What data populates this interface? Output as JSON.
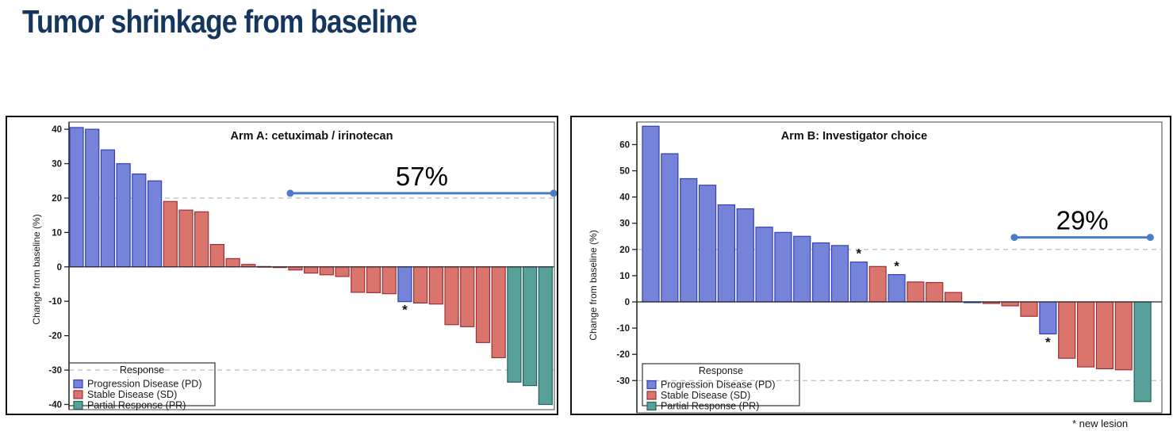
{
  "page": {
    "title": "Tumor shrinkage from baseline",
    "footnote": "* new lesion"
  },
  "legend": {
    "title": "Response",
    "items": [
      {
        "label": "Progression Disease (PD)",
        "response": "PD"
      },
      {
        "label": "Stable Disease (SD)",
        "response": "SD"
      },
      {
        "label": "Partial Response (PR)",
        "response": "PR"
      }
    ]
  },
  "colors": {
    "title_text": "#15365f",
    "annotation_line": "#4a7cc7",
    "gridline": "#c2c2c2",
    "axis": "#444444",
    "zero_line": "#222222",
    "chart_text": "#1a1a1a",
    "responses": {
      "PD": {
        "fill": "#7584d8",
        "border": "#3340b8"
      },
      "SD": {
        "fill": "#da756d",
        "border": "#9c3037"
      },
      "PR": {
        "fill": "#58a19a",
        "border": "#26615b"
      }
    }
  },
  "chart_data": [
    {
      "type": "bar",
      "variant": "waterfall",
      "title": "Arm A: cetuximab / irinotecan",
      "ylabel": "Change from baseline (%)",
      "ylim": [
        -41.5,
        42.1
      ],
      "yticks": [
        40,
        30,
        20,
        10,
        0,
        -10,
        -20,
        -30,
        -40
      ],
      "reference_lines": [
        20,
        -30
      ],
      "grid": "dashed",
      "legend_position": "bottom-left",
      "annotation": {
        "label": "57%",
        "y_value": 21.4,
        "start_bar": 14.1,
        "end_bar": 30.95
      },
      "bars": [
        {
          "value": 40.5,
          "response": "PD"
        },
        {
          "value": 40.0,
          "response": "PD"
        },
        {
          "value": 34.0,
          "response": "PD"
        },
        {
          "value": 30.0,
          "response": "PD"
        },
        {
          "value": 27.0,
          "response": "PD"
        },
        {
          "value": 25.0,
          "response": "PD"
        },
        {
          "value": 19.0,
          "response": "SD"
        },
        {
          "value": 16.5,
          "response": "SD"
        },
        {
          "value": 16.0,
          "response": "SD"
        },
        {
          "value": 6.5,
          "response": "SD"
        },
        {
          "value": 2.4,
          "response": "SD"
        },
        {
          "value": 0.7,
          "response": "SD"
        },
        {
          "value": 0.1,
          "response": "SD"
        },
        {
          "value": -0.2,
          "response": "SD"
        },
        {
          "value": -0.9,
          "response": "SD"
        },
        {
          "value": -1.8,
          "response": "SD"
        },
        {
          "value": -2.3,
          "response": "SD"
        },
        {
          "value": -2.8,
          "response": "SD"
        },
        {
          "value": -7.4,
          "response": "SD"
        },
        {
          "value": -7.5,
          "response": "SD"
        },
        {
          "value": -7.8,
          "response": "SD"
        },
        {
          "value": -10.1,
          "response": "PD",
          "new_lesion": true
        },
        {
          "value": -10.5,
          "response": "SD"
        },
        {
          "value": -10.8,
          "response": "SD"
        },
        {
          "value": -16.8,
          "response": "SD"
        },
        {
          "value": -17.4,
          "response": "SD"
        },
        {
          "value": -22.0,
          "response": "SD"
        },
        {
          "value": -26.4,
          "response": "SD"
        },
        {
          "value": -33.5,
          "response": "PR"
        },
        {
          "value": -34.5,
          "response": "PR"
        },
        {
          "value": -40.0,
          "response": "PR"
        }
      ]
    },
    {
      "type": "bar",
      "variant": "waterfall",
      "title": "Arm B: Investigator choice",
      "ylabel": "Change from baseline (%)",
      "ylim": [
        -42.3,
        68.6
      ],
      "yticks": [
        60,
        50,
        40,
        30,
        20,
        10,
        0,
        -10,
        -20,
        -30
      ],
      "reference_lines": [
        20,
        -30
      ],
      "grid": "dashed",
      "legend_position": "bottom-left",
      "annotation": {
        "label": "29%",
        "y_value": 24.6,
        "start_bar": 19.66,
        "end_bar": 26.85
      },
      "bars": [
        {
          "value": 67.0,
          "response": "PD"
        },
        {
          "value": 56.5,
          "response": "PD"
        },
        {
          "value": 47.0,
          "response": "PD"
        },
        {
          "value": 44.5,
          "response": "PD"
        },
        {
          "value": 37.0,
          "response": "PD"
        },
        {
          "value": 35.5,
          "response": "PD"
        },
        {
          "value": 28.5,
          "response": "PD"
        },
        {
          "value": 26.5,
          "response": "PD"
        },
        {
          "value": 25.0,
          "response": "PD"
        },
        {
          "value": 22.5,
          "response": "PD"
        },
        {
          "value": 21.5,
          "response": "PD"
        },
        {
          "value": 15.2,
          "response": "PD",
          "new_lesion": true
        },
        {
          "value": 13.5,
          "response": "SD"
        },
        {
          "value": 10.4,
          "response": "PD",
          "new_lesion": true
        },
        {
          "value": 7.6,
          "response": "SD"
        },
        {
          "value": 7.4,
          "response": "SD"
        },
        {
          "value": 3.6,
          "response": "SD"
        },
        {
          "value": -0.3,
          "response": "PD"
        },
        {
          "value": -0.6,
          "response": "SD"
        },
        {
          "value": -1.5,
          "response": "SD"
        },
        {
          "value": -5.5,
          "response": "SD"
        },
        {
          "value": -12.2,
          "response": "PD",
          "new_lesion": true
        },
        {
          "value": -21.5,
          "response": "SD"
        },
        {
          "value": -24.8,
          "response": "SD"
        },
        {
          "value": -25.5,
          "response": "SD"
        },
        {
          "value": -25.9,
          "response": "SD"
        },
        {
          "value": -38.0,
          "response": "PR"
        }
      ]
    }
  ]
}
